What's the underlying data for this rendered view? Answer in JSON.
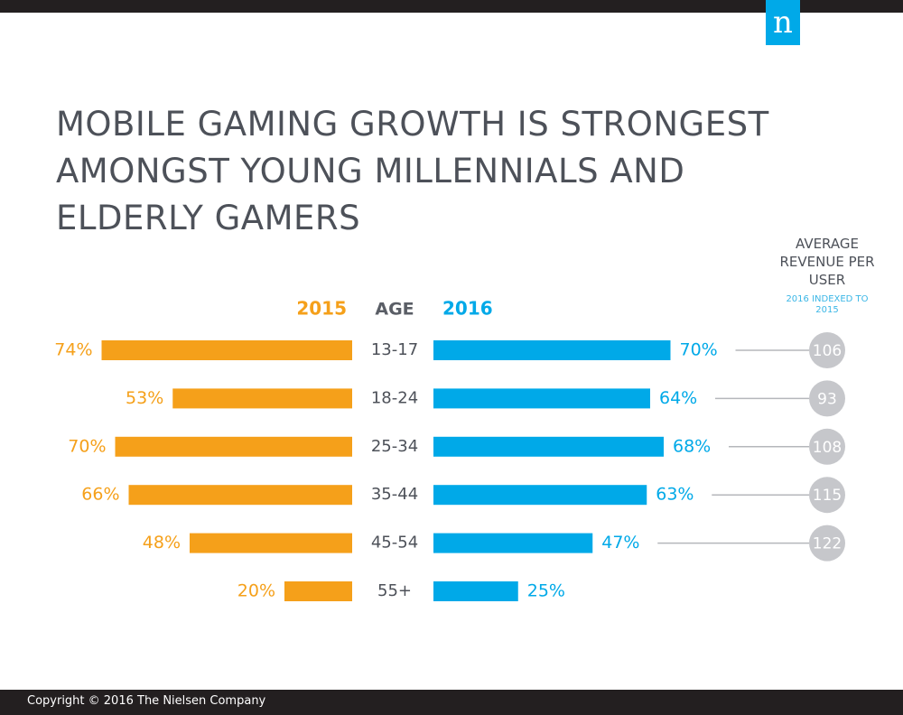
{
  "chart_data": {
    "type": "butterfly",
    "title": "MOBILE GAMING GROWTH IS STRONGEST AMONGST YOUNG MILLENNIALS AND ELDERLY GAMERS",
    "category_label": "AGE",
    "categories": [
      "13-17",
      "18-24",
      "25-34",
      "35-44",
      "45-54",
      "55+"
    ],
    "series": [
      {
        "name": "2015",
        "color": "#f5a01a",
        "side": "left",
        "values": [
          74,
          53,
          70,
          66,
          48,
          20
        ],
        "value_labels": [
          "74%",
          "53%",
          "70%",
          "66%",
          "48%",
          "20%"
        ]
      },
      {
        "name": "2016",
        "color": "#00a9e8",
        "side": "right",
        "values": [
          70,
          64,
          68,
          63,
          47,
          25
        ],
        "value_labels": [
          "70%",
          "64%",
          "68%",
          "63%",
          "47%",
          "25%"
        ]
      }
    ],
    "index": {
      "title": "AVERAGE REVENUE PER USER",
      "subtitle": "2016 INDEXED TO 2015",
      "color": "#c6c7cb",
      "values": [
        106,
        93,
        108,
        115,
        122,
        null
      ]
    }
  },
  "logo": "n",
  "footer": "Copyright © 2016 The Nielsen Company"
}
